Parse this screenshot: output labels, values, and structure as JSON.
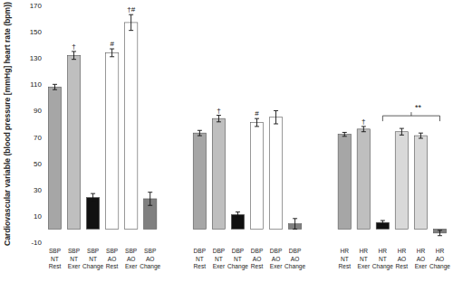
{
  "chart_data": {
    "type": "bar",
    "y_label": "Cardiovascular variable (blood pressure [mmHg] heart rate (bpm))",
    "categories": [
      "SBP NT Rest",
      "SBP NT Exer",
      "SBP NT Change",
      "SBP AO Rest",
      "SBP AO Exer",
      "SBP AO Change",
      "DBP NT Rest",
      "DBP NT Exer",
      "DBP NT Change",
      "DBP AO Rest",
      "DBP AO Exer",
      "DBP AO Change",
      "HR NT Rest",
      "HR NT Exer",
      "HR NT Change",
      "HR AO Rest",
      "HR AO Exer",
      "HR AO Change"
    ],
    "values": [
      108,
      132,
      24,
      134,
      157,
      23,
      73,
      84,
      11,
      81,
      85,
      4,
      72,
      76,
      5,
      74,
      71,
      -3
    ],
    "errors": [
      2,
      3,
      3,
      3,
      6,
      5,
      2,
      2.5,
      2,
      3,
      5,
      4,
      1.5,
      2,
      1.5,
      2.5,
      2,
      2
    ],
    "colors": [
      "#a6a6a6",
      "#bfbfbf",
      "#111111",
      "#ffffff",
      "#ffffff",
      "#808080",
      "#a6a6a6",
      "#bfbfbf",
      "#111111",
      "#ffffff",
      "#ffffff",
      "#808080",
      "#a6a6a6",
      "#bfbfbf",
      "#111111",
      "#d9d9d9",
      "#d9d9d9",
      "#808080"
    ],
    "annotations": [
      {
        "text": "†",
        "index": 1
      },
      {
        "text": "#",
        "index": 3
      },
      {
        "text": "†#",
        "index": 4
      },
      {
        "text": "†",
        "index": 7
      },
      {
        "text": "#",
        "index": 9
      },
      {
        "text": "†",
        "index": 13
      },
      {
        "text": "**",
        "from": 14,
        "to": 17
      }
    ],
    "ylim": [
      -10,
      170
    ],
    "yticks": [
      -10,
      10,
      30,
      50,
      70,
      90,
      110,
      130,
      150,
      170
    ],
    "grid": false
  }
}
